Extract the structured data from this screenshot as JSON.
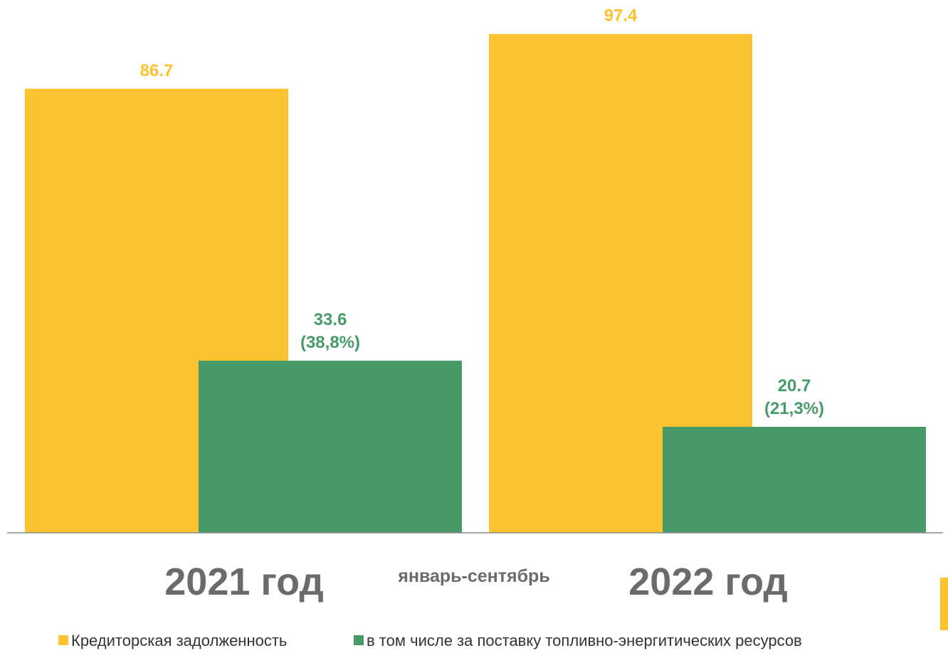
{
  "chart_data": {
    "type": "bar",
    "categories": [
      "2021 год",
      "2022 год"
    ],
    "period_label": "январь-сентябрь",
    "series": [
      {
        "name": "Кредиторская задолженность",
        "color": "#fcc22f",
        "label_color": "#fcc22f",
        "values": [
          86.7,
          97.4
        ],
        "value_labels": [
          [
            "86.7"
          ],
          [
            "97.4"
          ]
        ]
      },
      {
        "name": "в том числе за поставку топливно-энергитических ресурсов",
        "color": "#469a67",
        "label_color": "#469a67",
        "values": [
          33.6,
          20.7
        ],
        "value_labels": [
          [
            "33.6",
            "(38,8%)"
          ],
          [
            "20.7",
            "(21,3%)"
          ]
        ]
      }
    ],
    "ylim": [
      0,
      100
    ],
    "grid": false,
    "legend_position": "bottom"
  },
  "colors": {
    "accent_bar": "#fcc22f",
    "axis": "#8a8a8a"
  }
}
